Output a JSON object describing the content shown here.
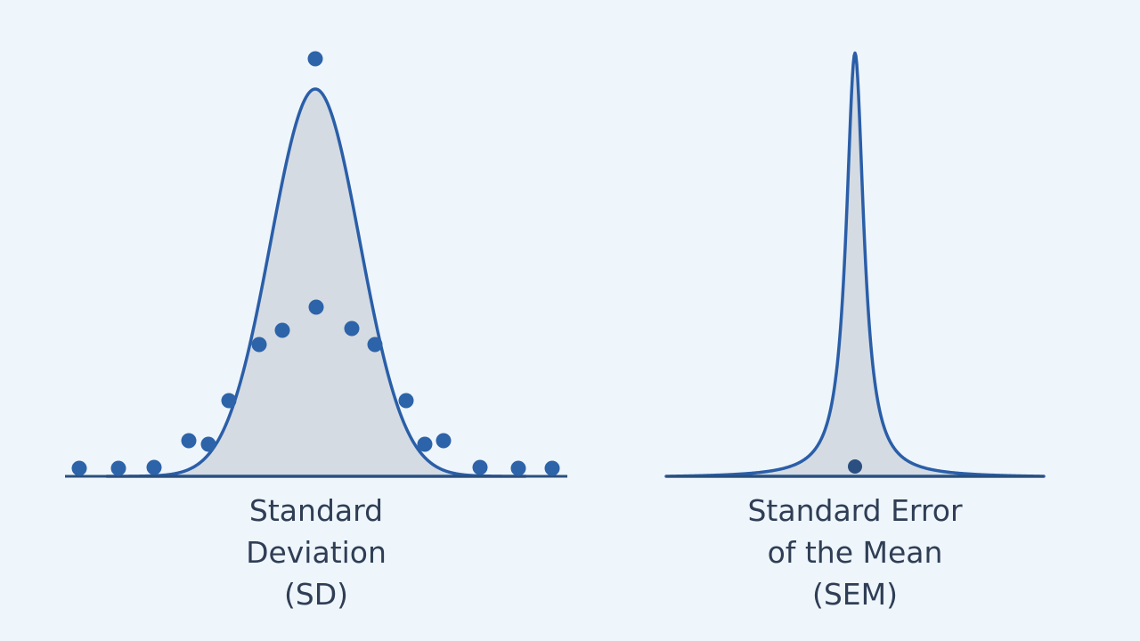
{
  "panels": [
    {
      "label": [
        "Standard",
        "Deviation",
        "(SD)"
      ]
    },
    {
      "label": [
        "Standard Error",
        "of the Mean",
        "(SEM)"
      ]
    }
  ]
}
